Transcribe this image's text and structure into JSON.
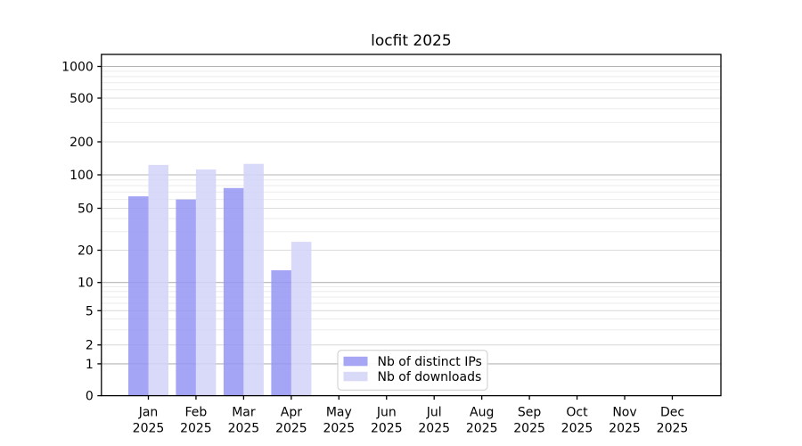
{
  "chart_data": {
    "type": "bar",
    "title": "locfit 2025",
    "months": [
      "Jan",
      "Feb",
      "Mar",
      "Apr",
      "May",
      "Jun",
      "Jul",
      "Aug",
      "Sep",
      "Oct",
      "Nov",
      "Dec"
    ],
    "year": "2025",
    "series": [
      {
        "name": "Nb of distinct IPs",
        "color": "#9595f3",
        "legend_color": "#a6a6f4",
        "values": [
          64,
          60,
          76,
          13,
          0,
          0,
          0,
          0,
          0,
          0,
          0,
          0
        ]
      },
      {
        "name": "Nb of downloads",
        "color": "#d2d2f8",
        "legend_color": "#d9d9f8",
        "values": [
          123,
          112,
          126,
          24,
          0,
          0,
          0,
          0,
          0,
          0,
          0,
          0
        ]
      }
    ],
    "y_ticks": [
      0,
      1,
      2,
      5,
      10,
      20,
      50,
      100,
      200,
      500,
      1000
    ],
    "y_minor_ticks": [
      3,
      4,
      6,
      7,
      8,
      9,
      30,
      40,
      60,
      70,
      80,
      90,
      300,
      400,
      600,
      700,
      800,
      900
    ],
    "scale": "log-like, 0 pinned at baseline",
    "ylim_top": 1300,
    "grid": true,
    "legend_position": "bottom-center",
    "colors": {
      "decade_gridline": "#b4b4b4",
      "labeled_gridline": "#dcdcdc",
      "minor_gridline": "#ebebeb",
      "axis": "#000000",
      "legend_border": "#cccccc",
      "legend_bg": "#ffffff"
    }
  }
}
